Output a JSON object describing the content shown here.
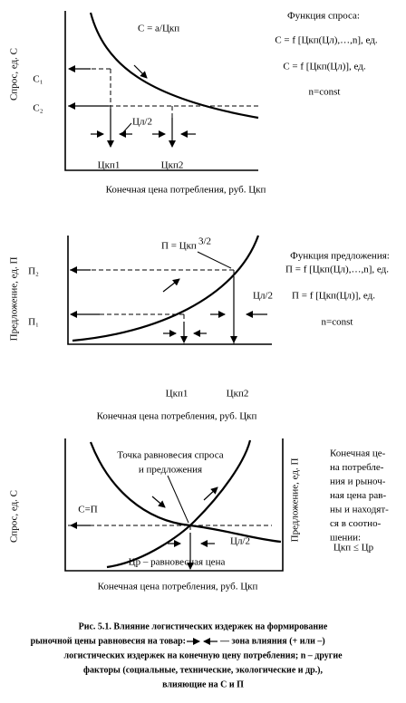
{
  "panel1": {
    "y_label": "Спрос, ед. С",
    "curve": "С = a/Цкп",
    "function_title": "Функция спроса:",
    "function_1": "С = f [Цкп(Цл),…,n], ед.",
    "function_2": "С = f [Цкп(Цл)], ед.",
    "function_3": "n=const",
    "y1": "С₁",
    "y2": "С₂",
    "zone": "Цл/2",
    "x1": "Цкп1",
    "x2": "Цкп2",
    "x_label": "Конечная цена потребления, руб. Цкп"
  },
  "panel2": {
    "y_label": "Предложение, ед.  П",
    "curve_base": "П = Цкп",
    "curve_exp": "3/2",
    "function_title": "Функция предложения:",
    "function_1": "П = f [Цкп(Цл),…,n], ед.",
    "function_2": "П = f [Цкп(Цл)], ед.",
    "function_3": "n=const",
    "y1": "П₁",
    "y2": "П₂",
    "zone": "Цл/2",
    "x1": "Цкп1",
    "x2": "Цкп2",
    "x_label": "Конечная цена потребления, руб. Цкп"
  },
  "panel3": {
    "y_label": "Спрос, ед.  С",
    "y2_label": "Предложение, ед.  П",
    "point_1": "Точка равновесия спроса",
    "point_2": "и предложения",
    "equal": "С=П",
    "zone": "Цл/2",
    "eq_price": "Цр – равновесная   цена",
    "x_label": "Конечная цена потребления, руб. Цкп",
    "note": [
      "Конечная це-",
      "на потребле-",
      "ния и рыноч-",
      "ная цена рав-",
      "ны и находят-",
      "ся в соотно-",
      "шении:"
    ],
    "relation": "Цкп ≤  Цр"
  },
  "caption": {
    "line_1": "Рис. 5.1.  Влияние логистических издержек на формирование",
    "line_2a": "рыночной цены равновесия на товар:",
    "line_2b": "— зона влияния (+ или –)",
    "line_3": "логистических издержек на конечную цену потребления; n – другие",
    "line_4": "факторы (социальные, технические, экологические и др.),",
    "line_5": "влияющие на С и П"
  }
}
